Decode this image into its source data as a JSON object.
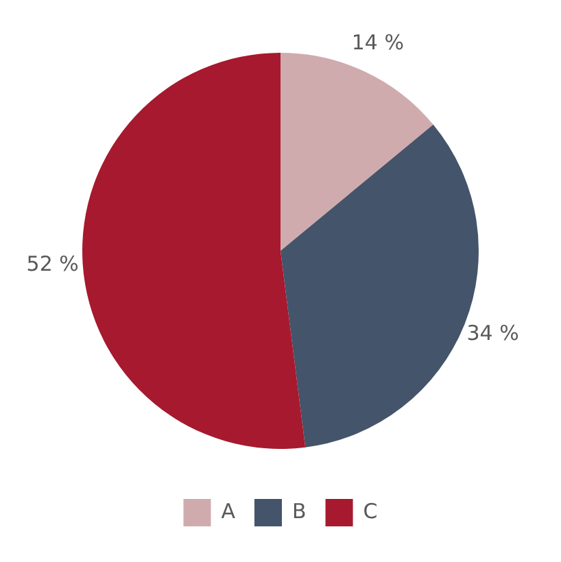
{
  "chart_data": {
    "type": "pie",
    "categories": [
      "A",
      "B",
      "C"
    ],
    "values": [
      14,
      34,
      52
    ],
    "colors": [
      "#d0abae",
      "#44546a",
      "#a6192e"
    ],
    "value_labels": [
      "14 %",
      "34 %",
      "52 %"
    ],
    "legend": "bottom"
  }
}
